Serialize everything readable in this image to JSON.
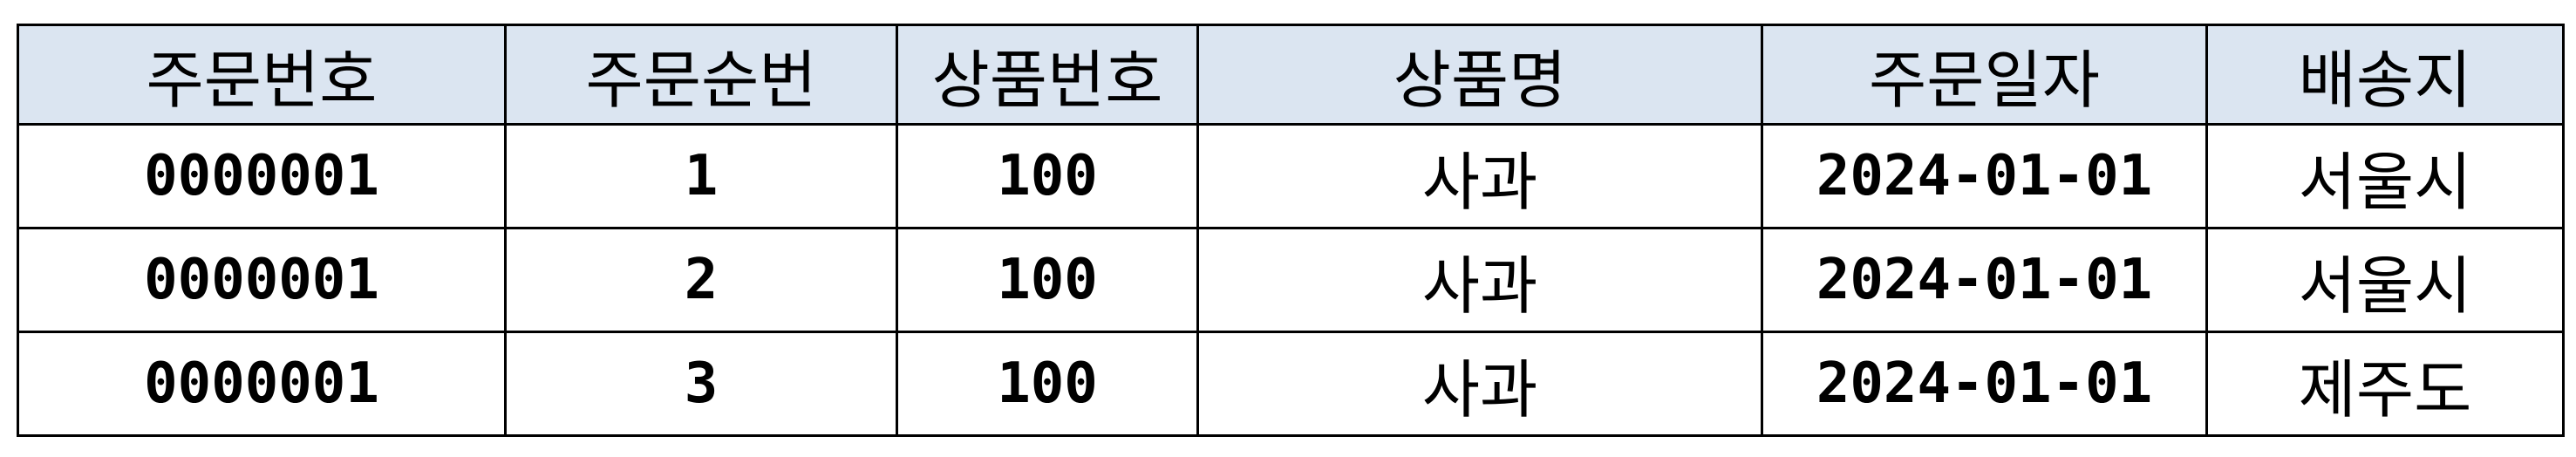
{
  "table": {
    "headers": [
      "주문번호",
      "주문순번",
      "상품번호",
      "상품명",
      "주문일자",
      "배송지"
    ],
    "rows": [
      [
        "0000001",
        "1",
        "100",
        "사과",
        "2024-01-01",
        "서울시"
      ],
      [
        "0000001",
        "2",
        "100",
        "사과",
        "2024-01-01",
        "서울시"
      ],
      [
        "0000001",
        "3",
        "100",
        "사과",
        "2024-01-01",
        "제주도"
      ]
    ],
    "header_bg": "#dbe5f1",
    "border_color": "#000000"
  }
}
